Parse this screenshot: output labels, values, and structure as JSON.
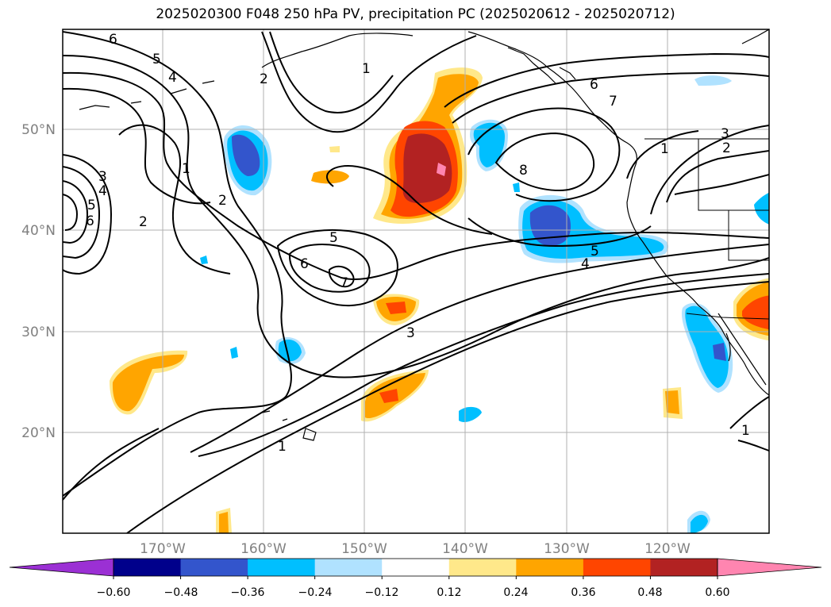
{
  "title": "2025020300 F048 250 hPa PV, precipitation PC (2025020612 - 2025020712)",
  "map": {
    "lat_labels": [
      "50°N",
      "40°N",
      "30°N",
      "20°N"
    ],
    "lon_labels": [
      "170°W",
      "160°W",
      "150°W",
      "140°W",
      "130°W",
      "120°W"
    ],
    "pv_contour_levels": [
      "1",
      "2",
      "3",
      "4",
      "5",
      "6",
      "7",
      "8"
    ]
  },
  "colorbar": {
    "ticks": [
      "−0.60",
      "−0.48",
      "−0.36",
      "−0.24",
      "−0.12",
      "0.12",
      "0.24",
      "0.36",
      "0.48",
      "0.60"
    ],
    "colors": [
      "#9b30d4",
      "#00008b",
      "#3355cc",
      "#00bfff",
      "#b0e2ff",
      "#ffffff",
      "#ffe88a",
      "#ffa500",
      "#ff4500",
      "#b22222",
      "#ff85b0"
    ]
  },
  "palette": {
    "neg_light": "#b0e2ff",
    "neg": "#00bfff",
    "neg_mid": "#3355cc",
    "neg_dark": "#00008b",
    "neg_extreme": "#9b30d4",
    "pos_light": "#ffe88a",
    "pos": "#ffa500",
    "pos_mid": "#ff4500",
    "pos_dark": "#b22222",
    "pos_extreme": "#ff85b0"
  }
}
